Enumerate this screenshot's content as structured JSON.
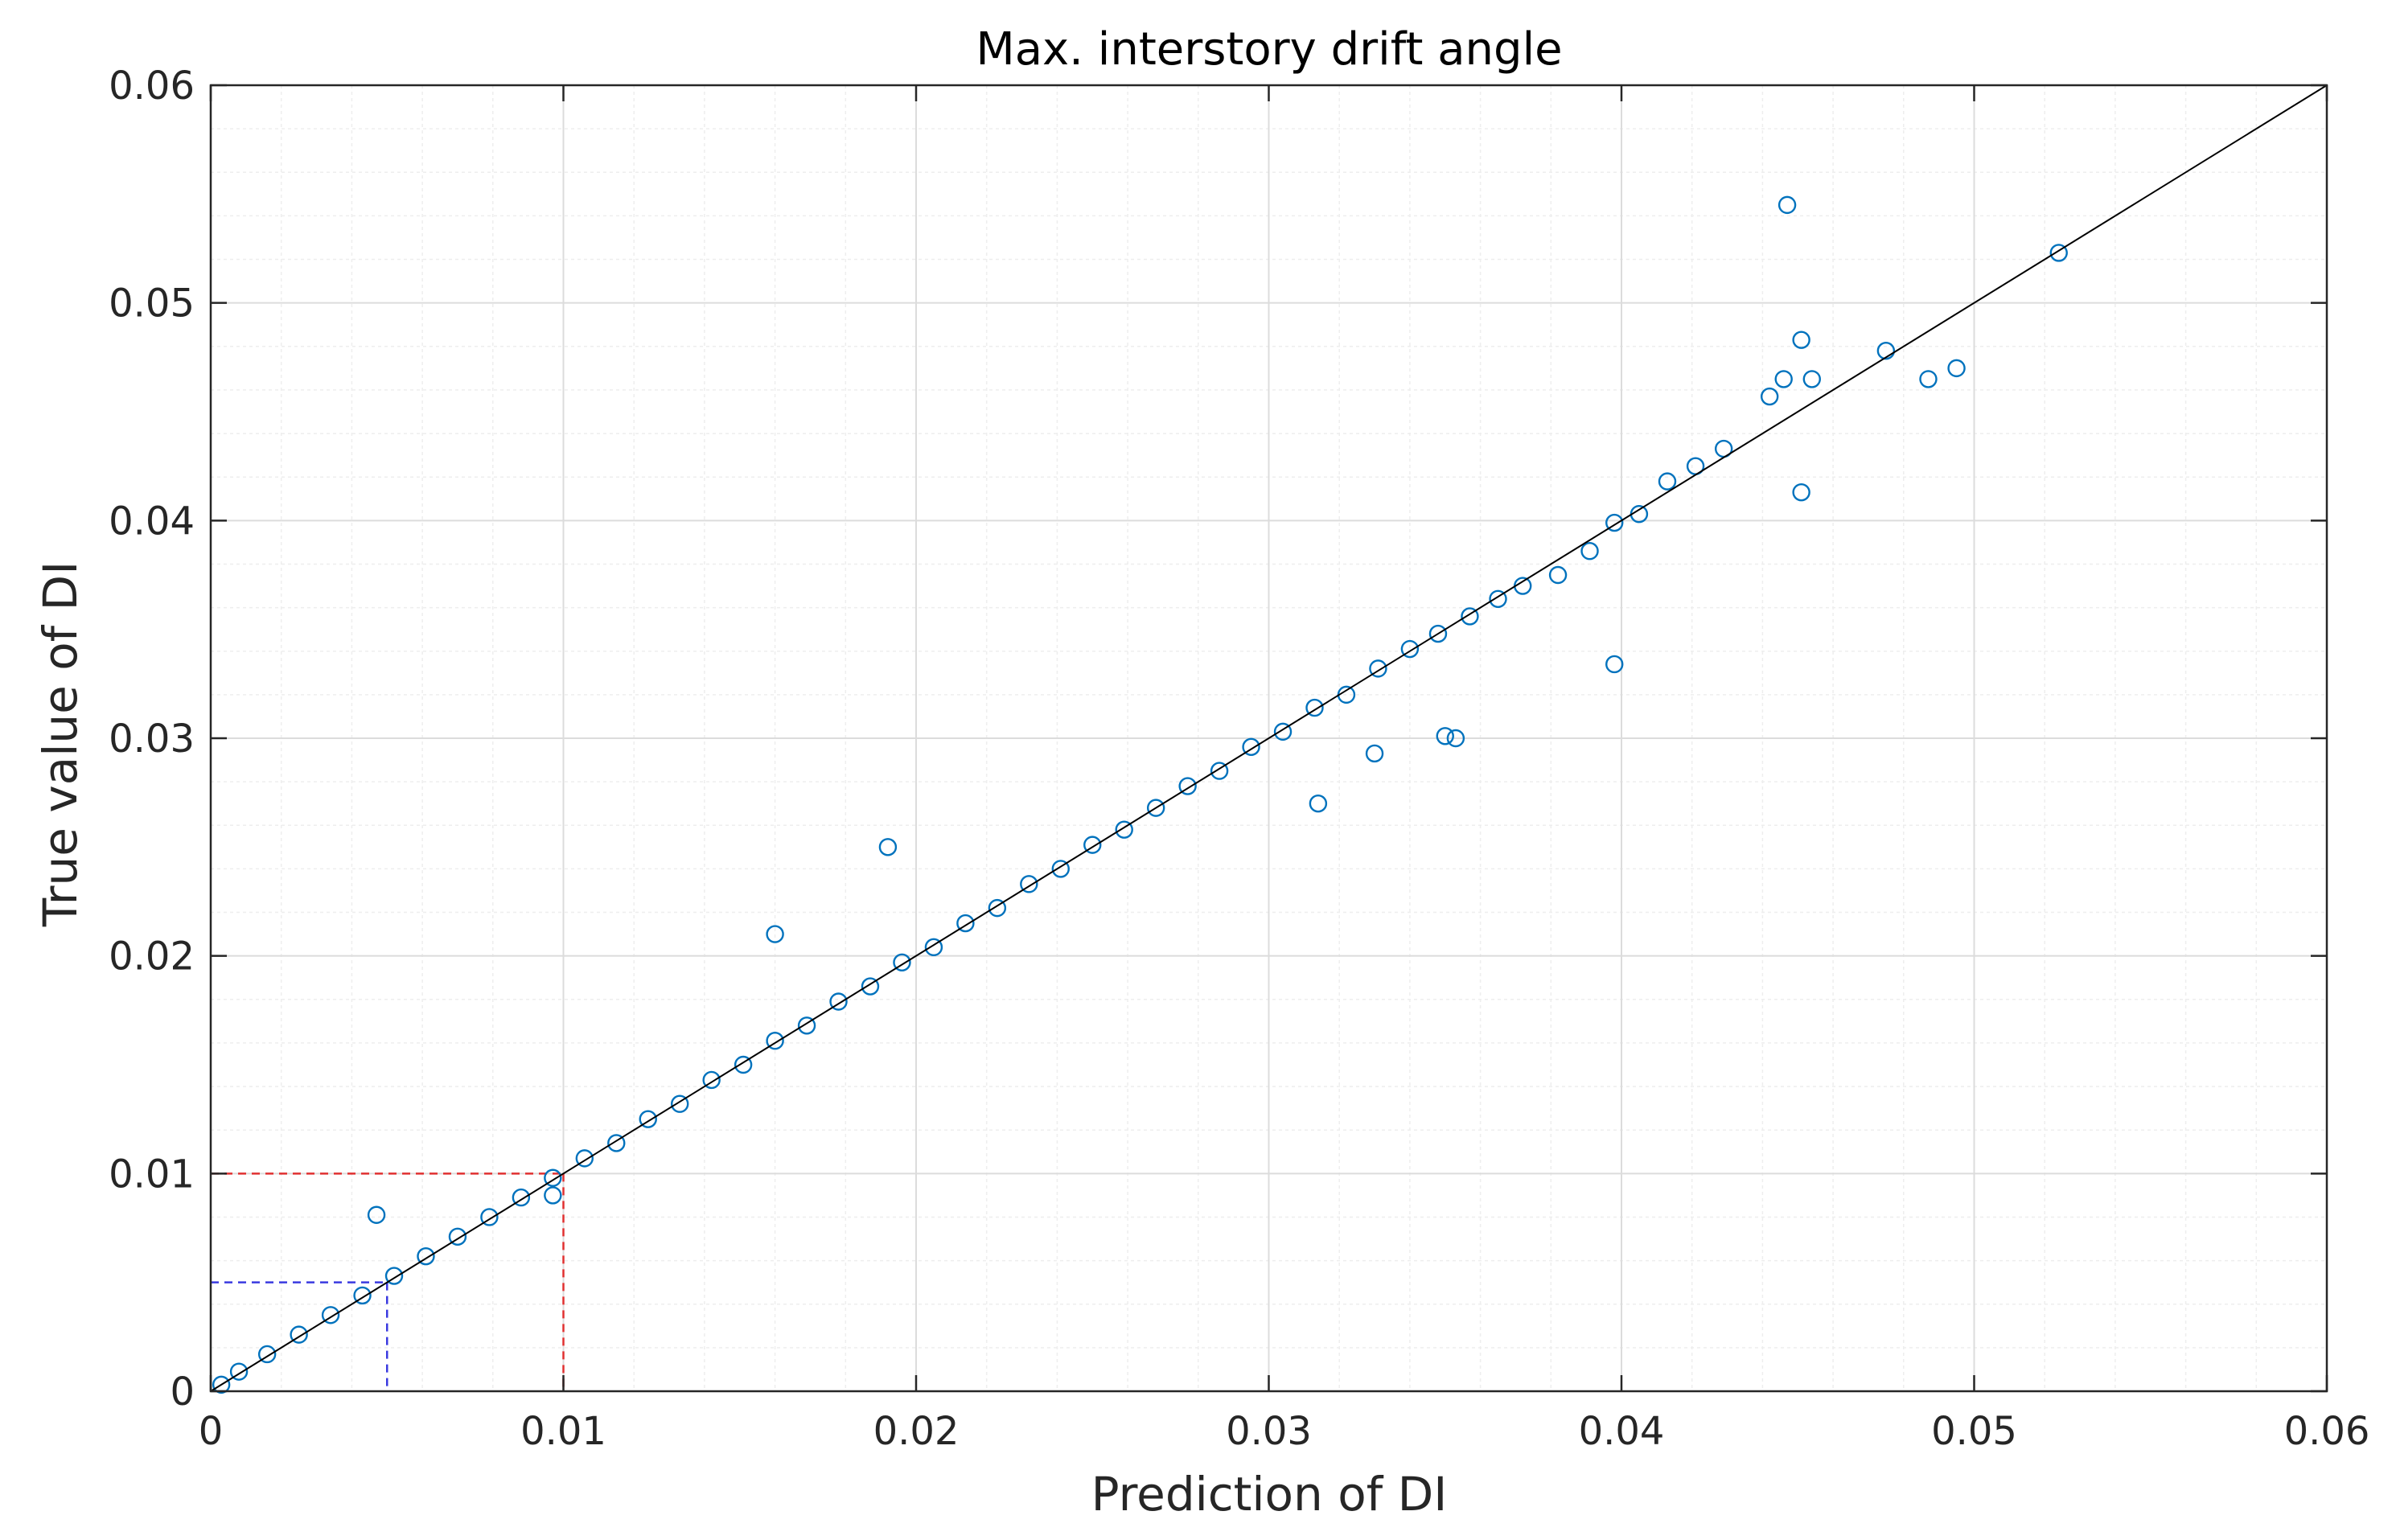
{
  "chart_data": {
    "type": "scatter",
    "title": "Max. interstory drift angle",
    "xlabel": "Prediction of DI",
    "ylabel": "True value of DI",
    "xlim": [
      0,
      0.06
    ],
    "ylim": [
      0,
      0.06
    ],
    "x_ticks": [
      "0",
      "0.01",
      "0.02",
      "0.03",
      "0.04",
      "0.05",
      "0.06"
    ],
    "y_ticks": [
      "0",
      "0.01",
      "0.02",
      "0.03",
      "0.04",
      "0.05",
      "0.06"
    ],
    "grid": true,
    "minor_grid": true,
    "legend": "none",
    "colors": {
      "points": "#0072BD",
      "identity_line": "#000000",
      "red_guide": "#E03030",
      "blue_guide": "#3A3AE0",
      "grid": "#DCDCDC",
      "minor_grid": "#EEEEEE"
    },
    "reference_line": {
      "x": [
        0,
        0.06
      ],
      "y": [
        0,
        0.06
      ]
    },
    "guides": [
      {
        "x": 0.01,
        "y": 0.01,
        "color": "red"
      },
      {
        "x": 0.005,
        "y": 0.005,
        "color": "blue"
      }
    ],
    "series": [
      {
        "marker": "open-circle",
        "x": [
          0.0447,
          0.0524,
          0.0451,
          0.0475,
          0.0495,
          0.0487,
          0.0451,
          0.0446,
          0.0442,
          0.0454,
          0.0398,
          0.0353,
          0.035,
          0.0314,
          0.033,
          0.016,
          0.0192,
          0.0097,
          0.0047,
          0.0429,
          0.0421,
          0.0413,
          0.0405,
          0.0398,
          0.0391,
          0.0382,
          0.0372,
          0.0365,
          0.0357,
          0.0348,
          0.034,
          0.0331,
          0.0322,
          0.0313,
          0.0304,
          0.0295,
          0.0286,
          0.0277,
          0.0268,
          0.0259,
          0.025,
          0.0241,
          0.0232,
          0.0223,
          0.0214,
          0.0205,
          0.0196,
          0.0187,
          0.0178,
          0.0169,
          0.016,
          0.0151,
          0.0142,
          0.0133,
          0.0124,
          0.0115,
          0.0106,
          0.0097,
          0.0088,
          0.0079,
          0.007,
          0.0061,
          0.0052,
          0.0043,
          0.0034,
          0.0025,
          0.0016,
          0.0008,
          0.0003
        ],
        "y": [
          0.0545,
          0.0523,
          0.0483,
          0.0478,
          0.047,
          0.0465,
          0.0413,
          0.0465,
          0.0457,
          0.0465,
          0.0334,
          0.03,
          0.0301,
          0.027,
          0.0293,
          0.021,
          0.025,
          0.009,
          0.0081,
          0.0433,
          0.0425,
          0.0418,
          0.0403,
          0.0399,
          0.0386,
          0.0375,
          0.037,
          0.0364,
          0.0356,
          0.0348,
          0.0341,
          0.0332,
          0.032,
          0.0314,
          0.0303,
          0.0296,
          0.0285,
          0.0278,
          0.0268,
          0.0258,
          0.0251,
          0.024,
          0.0233,
          0.0222,
          0.0215,
          0.0204,
          0.0197,
          0.0186,
          0.0179,
          0.0168,
          0.0161,
          0.015,
          0.0143,
          0.0132,
          0.0125,
          0.0114,
          0.0107,
          0.0098,
          0.0089,
          0.008,
          0.0071,
          0.0062,
          0.0053,
          0.0044,
          0.0035,
          0.0026,
          0.0017,
          0.0009,
          0.0003
        ]
      }
    ]
  }
}
